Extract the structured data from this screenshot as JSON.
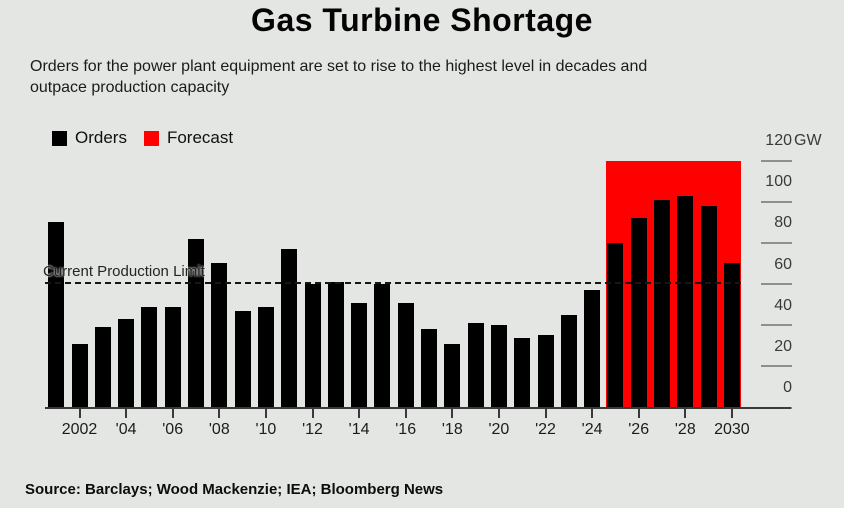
{
  "header": {
    "title": "Gas Turbine Shortage",
    "subtitle": "Orders for the power plant equipment are set to rise to the highest level in decades and\noutpace production capacity"
  },
  "source": {
    "text": "Source: Barclays; Wood Mackenzie; IEA; Bloomberg News"
  },
  "colors": {
    "background": "#e4e6e3",
    "orders": "#000000",
    "forecast": "#ff0000"
  },
  "chart_data": {
    "type": "bar",
    "title": "Gas Turbine Shortage",
    "unit": "GW",
    "grid": false,
    "legend_position": "top-left",
    "y_axis_position": "right",
    "ylim": [
      0,
      120
    ],
    "y_ticks": [
      0,
      20,
      40,
      60,
      80,
      100,
      120
    ],
    "y_top_label": "120",
    "categories": [
      2001,
      2002,
      2003,
      2004,
      2005,
      2006,
      2007,
      2008,
      2009,
      2010,
      2011,
      2012,
      2013,
      2014,
      2015,
      2016,
      2017,
      2018,
      2019,
      2020,
      2021,
      2022,
      2023,
      2024,
      2025,
      2026,
      2027,
      2028,
      2029,
      2030
    ],
    "values": [
      90,
      31,
      39,
      43,
      49,
      49,
      82,
      70,
      47,
      49,
      77,
      60,
      61,
      51,
      60,
      51,
      38,
      31,
      41,
      40,
      34,
      35,
      45,
      57,
      80,
      92,
      101,
      103,
      98,
      70
    ],
    "series": [
      {
        "name": "Orders",
        "color": "#000000",
        "years": "2001-2030"
      },
      {
        "name": "Forecast",
        "color": "#ff0000",
        "years": "2025-2030"
      }
    ],
    "forecast_band": {
      "start_year": 2025,
      "end_year": 2030,
      "top": 120,
      "color": "#ff0000"
    },
    "annotation": {
      "label": "Current Production Limit",
      "value": 60
    },
    "legend": [
      {
        "label": "Orders",
        "color": "#000000"
      },
      {
        "label": "Forecast",
        "color": "#ff0000"
      }
    ],
    "x_tick_labels": [
      {
        "year": 2002,
        "label": "2002"
      },
      {
        "year": 2004,
        "label": "'04"
      },
      {
        "year": 2006,
        "label": "'06"
      },
      {
        "year": 2008,
        "label": "'08"
      },
      {
        "year": 2010,
        "label": "'10"
      },
      {
        "year": 2012,
        "label": "'12"
      },
      {
        "year": 2014,
        "label": "'14"
      },
      {
        "year": 2016,
        "label": "'16"
      },
      {
        "year": 2018,
        "label": "'18"
      },
      {
        "year": 2020,
        "label": "'20"
      },
      {
        "year": 2022,
        "label": "'22"
      },
      {
        "year": 2024,
        "label": "'24"
      },
      {
        "year": 2026,
        "label": "'26"
      },
      {
        "year": 2028,
        "label": "'28"
      },
      {
        "year": 2030,
        "label": "2030"
      }
    ]
  }
}
